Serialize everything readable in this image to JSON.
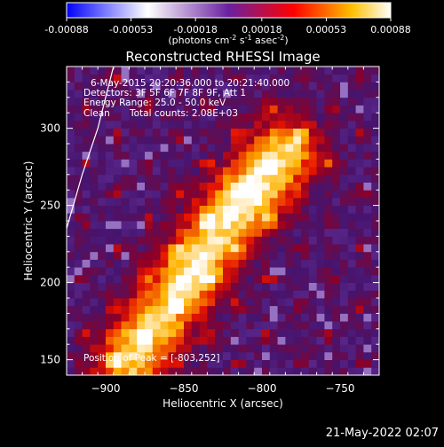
{
  "chart_data": {
    "type": "heatmap",
    "title": "Reconstructed RHESSI Image",
    "xlabel": "Heliocentric X (arcsec)",
    "ylabel": "Heliocentric Y (arcsec)",
    "xlim": [
      -925,
      -725
    ],
    "ylim": [
      140,
      340
    ],
    "x_ticks": [
      -900,
      -850,
      -800,
      -750
    ],
    "y_ticks": [
      150,
      200,
      250,
      300
    ],
    "colorbar": {
      "min": -0.00088,
      "max": 0.00088,
      "tick_values": [
        -0.00088,
        -0.00053,
        -0.00018,
        0.00018,
        0.00053,
        0.00088
      ],
      "tick_labels": [
        "-0.00088",
        "-0.00053",
        "-0.00018",
        "0.00018",
        "0.00053",
        "0.00088"
      ],
      "unit_parts": [
        "(photons cm",
        "-2",
        " s",
        "-1",
        " asec",
        "-2",
        ")"
      ]
    },
    "annotations": [
      "6-May-2015 20:20:36.000 to 20:21:40.000",
      "Detectors: 3F 5F 6F 7F 8F 9F, Att 1",
      "Energy Range: 25.0 - 50.0 keV",
      "Clean",
      "Total counts: 2.08E+03",
      "Position of Peak = [-803,252]"
    ],
    "peak": [
      -803,
      252
    ],
    "source_ridge": [
      [
        -885,
        150
      ],
      [
        -860,
        185
      ],
      [
        -840,
        215
      ],
      [
        -820,
        245
      ],
      [
        -800,
        270
      ],
      [
        -785,
        285
      ]
    ],
    "limb_arc": [
      [
        -925,
        235
      ],
      [
        -915,
        270
      ],
      [
        -905,
        300
      ],
      [
        -895,
        340
      ]
    ],
    "colors": [
      "#0000ff",
      "#ffffff",
      "#8040c0",
      "#ff0000",
      "#ffff00",
      "#ffffff"
    ]
  },
  "footer": {
    "date": "21-May-2022 02:07"
  }
}
